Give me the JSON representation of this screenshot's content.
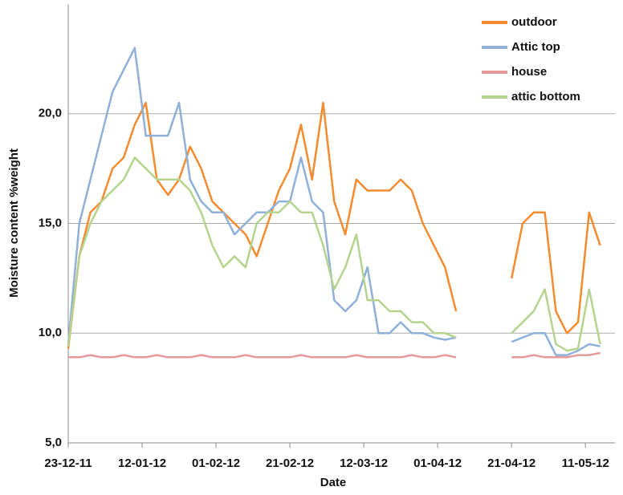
{
  "chart_data": {
    "type": "line",
    "x_label": "Date",
    "y_label": "Moisture content %weight",
    "x": [
      "2011-12-23",
      "2011-12-26",
      "2011-12-29",
      "2012-01-01",
      "2012-01-04",
      "2012-01-07",
      "2012-01-10",
      "2012-01-13",
      "2012-01-16",
      "2012-01-19",
      "2012-01-22",
      "2012-01-25",
      "2012-01-28",
      "2012-01-31",
      "2012-02-03",
      "2012-02-06",
      "2012-02-09",
      "2012-02-12",
      "2012-02-15",
      "2012-02-18",
      "2012-02-21",
      "2012-02-24",
      "2012-02-27",
      "2012-03-01",
      "2012-03-04",
      "2012-03-07",
      "2012-03-10",
      "2012-03-13",
      "2012-03-16",
      "2012-03-19",
      "2012-03-22",
      "2012-03-25",
      "2012-03-28",
      "2012-03-31",
      "2012-04-03",
      "2012-04-06",
      "2012-04-13",
      "2012-04-21",
      "2012-04-24",
      "2012-04-27",
      "2012-04-30",
      "2012-05-03",
      "2012-05-06",
      "2012-05-09",
      "2012-05-12",
      "2012-05-15"
    ],
    "series": [
      {
        "name": "outdoor",
        "color": "#f58a2e",
        "values": [
          9.3,
          13.5,
          15.5,
          16,
          17.5,
          18,
          19.5,
          20.5,
          17,
          16.3,
          17,
          18.5,
          17.5,
          16,
          15.5,
          15,
          14.5,
          13.5,
          15,
          16.5,
          17.5,
          19.5,
          17,
          20.5,
          16,
          14.5,
          17,
          16.5,
          16.5,
          16.5,
          17,
          16.5,
          15,
          14,
          13,
          11,
          null,
          12.5,
          15,
          15.5,
          15.5,
          11,
          10,
          10.5,
          15.5,
          14
        ]
      },
      {
        "name": "Attic top",
        "color": "#8fb0d8",
        "values": [
          9.5,
          15,
          17,
          19,
          21,
          22,
          23,
          19,
          19,
          19,
          20.5,
          17,
          16,
          15.5,
          15.5,
          14.5,
          15,
          15.5,
          15.5,
          16,
          16,
          18,
          16,
          15.5,
          11.5,
          11,
          11.5,
          13,
          10,
          10,
          10.5,
          10,
          10,
          9.8,
          9.7,
          9.8,
          null,
          9.6,
          9.8,
          10,
          10,
          9,
          9,
          9.2,
          9.5,
          9.4
        ]
      },
      {
        "name": "house",
        "color": "#e6999a",
        "values": [
          8.9,
          8.9,
          9,
          8.9,
          8.9,
          9,
          8.9,
          8.9,
          9,
          8.9,
          8.9,
          8.9,
          9,
          8.9,
          8.9,
          8.9,
          9,
          8.9,
          8.9,
          8.9,
          8.9,
          9,
          8.9,
          8.9,
          8.9,
          8.9,
          9,
          8.9,
          8.9,
          8.9,
          8.9,
          9,
          8.9,
          8.9,
          9,
          8.9,
          null,
          8.9,
          8.9,
          9,
          8.9,
          8.9,
          8.9,
          9,
          9,
          9.1
        ]
      },
      {
        "name": "attic bottom",
        "color": "#b5d38f",
        "values": [
          9.4,
          13.5,
          15,
          16,
          16.5,
          17,
          18,
          17.5,
          17,
          17,
          17,
          16.5,
          15.5,
          14,
          13,
          13.5,
          13,
          15,
          15.5,
          15.5,
          16,
          15.5,
          15.5,
          14,
          12,
          13,
          14.5,
          11.5,
          11.5,
          11,
          11,
          10.5,
          10.5,
          10,
          10,
          9.8,
          null,
          10,
          10.5,
          11,
          12,
          9.5,
          9.2,
          9.3,
          12,
          9.5
        ]
      }
    ],
    "xlim": [
      "2011-12-23",
      "2012-05-19"
    ],
    "xticks": [
      {
        "value": "2011-12-23",
        "label": "23-12-11"
      },
      {
        "value": "2012-01-12",
        "label": "12-01-12"
      },
      {
        "value": "2012-02-01",
        "label": "01-02-12"
      },
      {
        "value": "2012-02-21",
        "label": "21-02-12"
      },
      {
        "value": "2012-03-12",
        "label": "12-03-12"
      },
      {
        "value": "2012-04-01",
        "label": "01-04-12"
      },
      {
        "value": "2012-04-21",
        "label": "21-04-12"
      },
      {
        "value": "2012-05-11",
        "label": "11-05-12"
      }
    ],
    "ylim": [
      5,
      25
    ],
    "yticks": [
      {
        "value": 5,
        "label": "5,0"
      },
      {
        "value": 10,
        "label": "10,0"
      },
      {
        "value": 15,
        "label": "15,0"
      },
      {
        "value": 20,
        "label": "20,0"
      }
    ],
    "grid": true,
    "legend": "upper right"
  }
}
